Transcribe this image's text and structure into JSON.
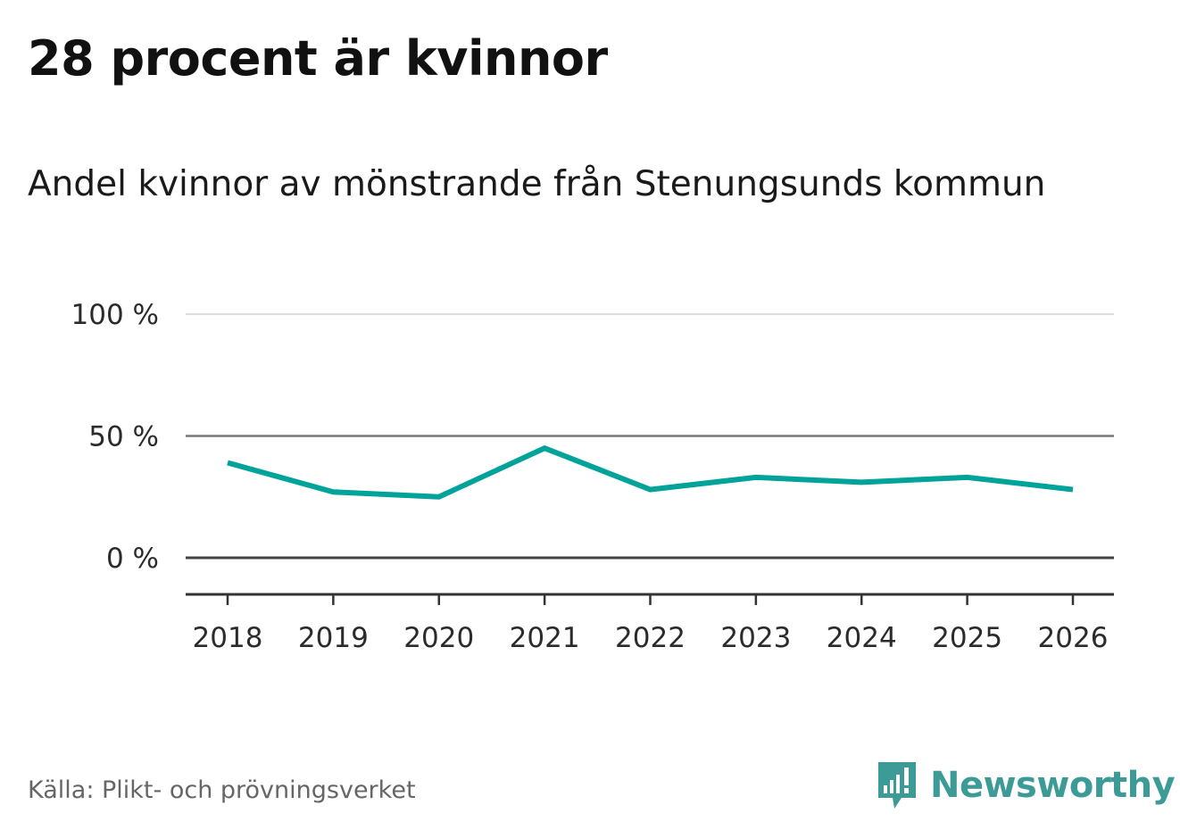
{
  "header": {
    "title": "28 procent är kvinnor",
    "subtitle": "Andel kvinnor av mönstrande från Stenungsunds kommun"
  },
  "chart_data": {
    "type": "line",
    "title": "28 procent är kvinnor",
    "subtitle": "Andel kvinnor av mönstrande från Stenungsunds kommun",
    "x": [
      "2018",
      "2019",
      "2020",
      "2021",
      "2022",
      "2023",
      "2024",
      "2025",
      "2026"
    ],
    "series": [
      {
        "name": "Andel kvinnor",
        "values": [
          39,
          27,
          25,
          45,
          28,
          33,
          31,
          33,
          28
        ]
      }
    ],
    "yticks": [
      {
        "value": 0,
        "label": "0 %"
      },
      {
        "value": 50,
        "label": "50 %"
      },
      {
        "value": 100,
        "label": "100 %"
      }
    ],
    "ylim": [
      -15,
      100
    ],
    "xlabel": "",
    "ylabel": "",
    "grid": true,
    "line_color": "#00a39a"
  },
  "footer": {
    "source": "Källa: Plikt- och prövningsverket",
    "brand": "Newsworthy",
    "brand_color": "#3c9a97"
  }
}
